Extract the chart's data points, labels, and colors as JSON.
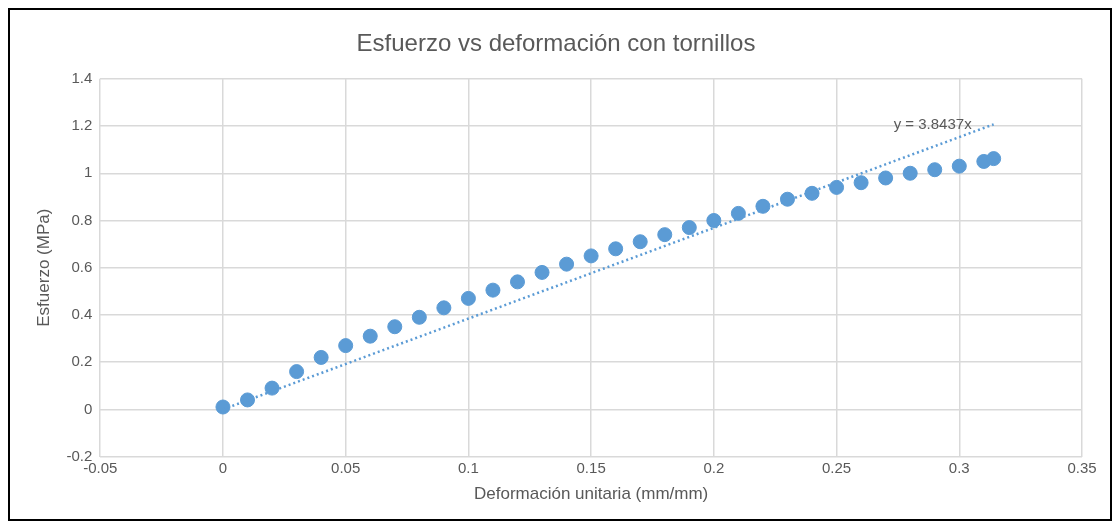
{
  "chart_data": {
    "type": "scatter",
    "title": "Esfuerzo vs deformación con tornillos",
    "xlabel": "Deformación unitaria (mm/mm)",
    "ylabel": "Esfuerzo (MPa)",
    "xlim": [
      -0.05,
      0.35
    ],
    "xticks": [
      -0.05,
      0,
      0.05,
      0.1,
      0.15,
      0.2,
      0.25,
      0.3,
      0.35
    ],
    "ylim": [
      -0.2,
      1.4
    ],
    "yticks": [
      -0.2,
      0,
      0.2,
      0.4,
      0.6,
      0.8,
      1,
      1.2,
      1.4
    ],
    "grid": true,
    "legend": false,
    "series": [
      {
        "color": "#5b9bd5",
        "marker": "circle",
        "x": [
          0,
          0.01,
          0.02,
          0.03,
          0.04,
          0.05,
          0.06,
          0.07,
          0.08,
          0.09,
          0.1,
          0.11,
          0.12,
          0.13,
          0.14,
          0.15,
          0.16,
          0.17,
          0.18,
          0.19,
          0.2,
          0.21,
          0.22,
          0.23,
          0.24,
          0.25,
          0.26,
          0.27,
          0.28,
          0.29,
          0.3,
          0.31,
          0.314
        ],
        "values": [
          0.01,
          0.04,
          0.09,
          0.16,
          0.22,
          0.27,
          0.31,
          0.35,
          0.39,
          0.43,
          0.47,
          0.505,
          0.54,
          0.58,
          0.615,
          0.65,
          0.68,
          0.71,
          0.74,
          0.77,
          0.8,
          0.83,
          0.86,
          0.89,
          0.915,
          0.94,
          0.96,
          0.98,
          1.0,
          1.015,
          1.03,
          1.05,
          1.062
        ]
      },
      {
        "type": "line",
        "color": "#5b9bd5",
        "line_style": "dotted",
        "marker": "none",
        "x": [
          0,
          0.314
        ],
        "values": [
          0,
          1.207
        ]
      }
    ],
    "annotations": [
      {
        "text": "y = 3.8437x",
        "x": 0.314,
        "y": 1.207
      }
    ]
  }
}
